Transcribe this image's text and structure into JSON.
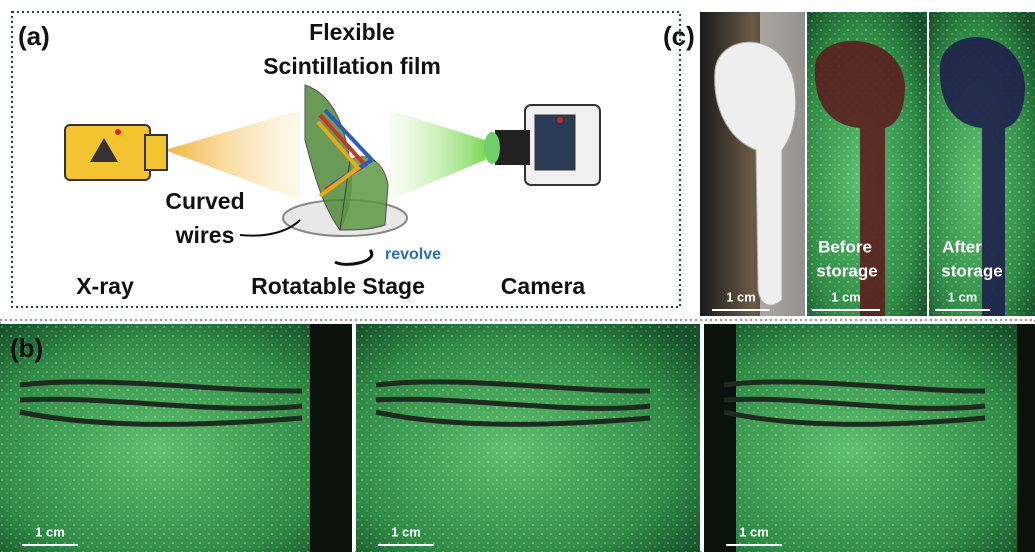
{
  "panel_a": {
    "label": "(a)",
    "film_label": [
      "Flexible",
      "Scintillation film"
    ],
    "wires_label": [
      "Curved",
      "wires"
    ],
    "revolve": "revolve",
    "xray": "X-ray",
    "stage": "Rotatable Stage",
    "camera": "Camera"
  },
  "panel_c": {
    "label": "(c)",
    "images": [
      {
        "scale": "1 cm"
      },
      {
        "caption": [
          "Before",
          "storage"
        ],
        "scale": "1 cm"
      },
      {
        "caption": [
          "After",
          "storage"
        ],
        "scale": "1 cm"
      }
    ]
  },
  "panel_b": {
    "label": "(b)",
    "images": [
      {
        "scale": "1 cm"
      },
      {
        "scale": "1 cm"
      },
      {
        "scale": "1 cm"
      }
    ]
  }
}
